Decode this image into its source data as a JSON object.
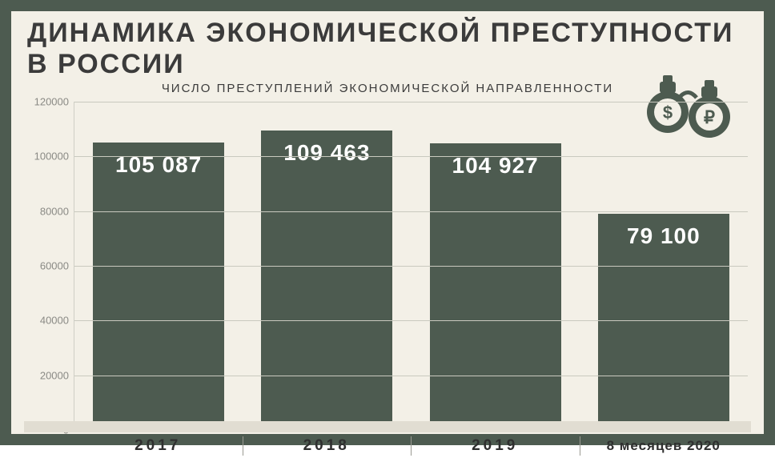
{
  "title": "ДИНАМИКА ЭКОНОМИЧЕСКОЙ ПРЕСТУПНОСТИ В РОССИИ",
  "subtitle": "ЧИСЛО ПРЕСТУПЛЕНИЙ ЭКОНОМИЧЕСКОЙ НАПРАВЛЕННОСТИ",
  "chart": {
    "type": "bar",
    "categories": [
      "2017",
      "2018",
      "2019",
      "8 месяцев 2020"
    ],
    "values": [
      105087,
      109463,
      104927,
      79100
    ],
    "value_labels": [
      "105 087",
      "109 463",
      "104 927",
      "79 100"
    ],
    "bar_color": "#4d5b50",
    "value_label_color": "#ffffff",
    "value_label_fontsize": 28,
    "value_label_weight": 700,
    "ylim": [
      0,
      120000
    ],
    "yticks": [
      0,
      20000,
      40000,
      60000,
      80000,
      100000,
      120000
    ],
    "ytick_labels": [
      "0",
      "20000",
      "40000",
      "60000",
      "80000",
      "100000",
      "120000"
    ],
    "ytick_color": "#8a8a85",
    "ytick_fontsize": 13,
    "grid_color": "#c9c9bf",
    "background_color": "#f3f0e7",
    "bar_width": 0.78,
    "category_fontsize": 19,
    "category_letter_spacing": 4,
    "title_fontsize": 34,
    "title_color": "#3b3b3b",
    "subtitle_fontsize": 15,
    "subtitle_color": "#3b3b3b",
    "frame_border_color": "#4d5b50",
    "frame_border_width": 14,
    "footer_band_color": "#e1ddd2"
  },
  "icon": {
    "name": "handcuffs-money-icon",
    "color": "#4d5b50"
  }
}
